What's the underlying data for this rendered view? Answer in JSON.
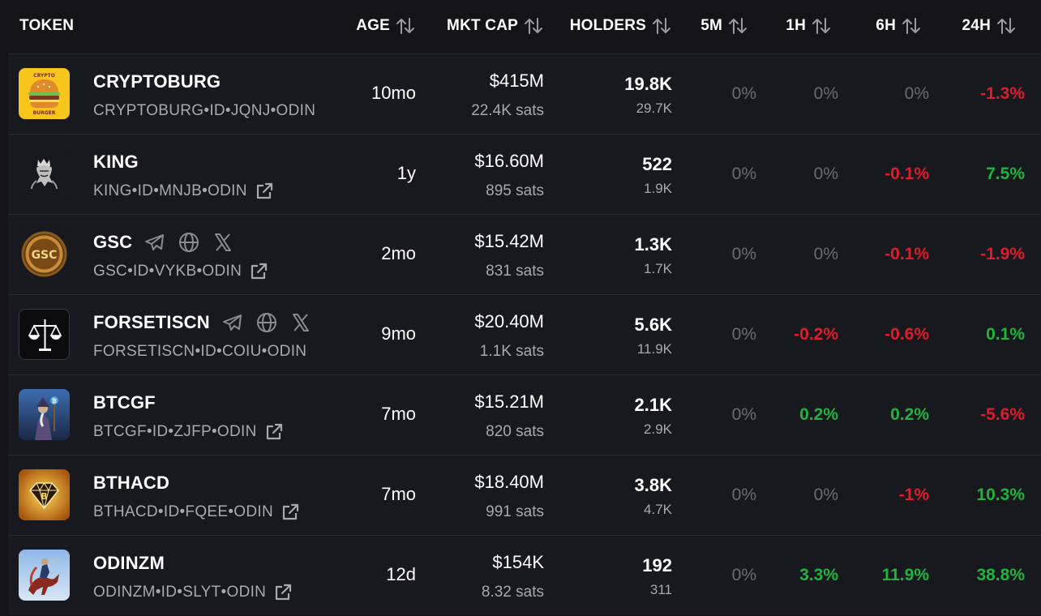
{
  "headers": {
    "token": "TOKEN",
    "age": "AGE",
    "mktcap": "MKT CAP",
    "holders": "HOLDERS",
    "m5": "5M",
    "h1": "1H",
    "h6": "6H",
    "h24": "24H"
  },
  "colors": {
    "background": "#131318",
    "row": "#18181f",
    "positive": "#1fb53b",
    "negative": "#e01b2a",
    "neutral": "#6b6b76",
    "muted": "#a8a8b3"
  },
  "rows": [
    {
      "name": "CRYPTOBURG",
      "id": "CRYPTOBURG•ID•JQNJ•ODIN",
      "logo_icon": "burger-logo-icon",
      "socials": [],
      "age": "10mo",
      "mktcap": "$415M",
      "mktcap_sats": "22.4K sats",
      "holders": "19.8K",
      "holders_sub": "29.7K",
      "m5": "0%",
      "m5_dir": "neutral",
      "h1": "0%",
      "h1_dir": "neutral",
      "h6": "0%",
      "h6_dir": "neutral",
      "h24": "-1.3%",
      "h24_dir": "neg"
    },
    {
      "name": "KING",
      "id": "KING•ID•MNJB•ODIN",
      "logo_icon": "king-logo-icon",
      "socials": [],
      "age": "1y",
      "mktcap": "$16.60M",
      "mktcap_sats": "895 sats",
      "holders": "522",
      "holders_sub": "1.9K",
      "m5": "0%",
      "m5_dir": "neutral",
      "h1": "0%",
      "h1_dir": "neutral",
      "h6": "-0.1%",
      "h6_dir": "neg",
      "h24": "7.5%",
      "h24_dir": "pos"
    },
    {
      "name": "GSC",
      "id": "GSC•ID•VYKB•ODIN",
      "logo_icon": "gsc-coin-logo-icon",
      "socials": [
        "telegram-icon",
        "globe-icon",
        "x-icon"
      ],
      "age": "2mo",
      "mktcap": "$15.42M",
      "mktcap_sats": "831 sats",
      "holders": "1.3K",
      "holders_sub": "1.7K",
      "m5": "0%",
      "m5_dir": "neutral",
      "h1": "0%",
      "h1_dir": "neutral",
      "h6": "-0.1%",
      "h6_dir": "neg",
      "h24": "-1.9%",
      "h24_dir": "neg"
    },
    {
      "name": "FORSETISCN",
      "id": "FORSETISCN•ID•COIU•ODIN",
      "logo_icon": "scales-logo-icon",
      "socials": [
        "telegram-icon",
        "globe-icon",
        "x-icon"
      ],
      "age": "9mo",
      "mktcap": "$20.40M",
      "mktcap_sats": "1.1K sats",
      "holders": "5.6K",
      "holders_sub": "11.9K",
      "m5": "0%",
      "m5_dir": "neutral",
      "h1": "-0.2%",
      "h1_dir": "neg",
      "h6": "-0.6%",
      "h6_dir": "neg",
      "h24": "0.1%",
      "h24_dir": "pos"
    },
    {
      "name": "BTCGF",
      "id": "BTCGF•ID•ZJFP•ODIN",
      "logo_icon": "wizard-logo-icon",
      "socials": [],
      "age": "7mo",
      "mktcap": "$15.21M",
      "mktcap_sats": "820 sats",
      "holders": "2.1K",
      "holders_sub": "2.9K",
      "m5": "0%",
      "m5_dir": "neutral",
      "h1": "0.2%",
      "h1_dir": "pos",
      "h6": "0.2%",
      "h6_dir": "pos",
      "h24": "-5.6%",
      "h24_dir": "neg"
    },
    {
      "name": "BTHACD",
      "id": "BTHACD•ID•FQEE•ODIN",
      "logo_icon": "gold-diamond-logo-icon",
      "socials": [],
      "age": "7mo",
      "mktcap": "$18.40M",
      "mktcap_sats": "991 sats",
      "holders": "3.8K",
      "holders_sub": "4.7K",
      "m5": "0%",
      "m5_dir": "neutral",
      "h1": "0%",
      "h1_dir": "neutral",
      "h6": "-1%",
      "h6_dir": "neg",
      "h24": "10.3%",
      "h24_dir": "pos"
    },
    {
      "name": "ODINZM",
      "id": "ODINZM•ID•SLYT•ODIN",
      "logo_icon": "rider-logo-icon",
      "socials": [],
      "age": "12d",
      "mktcap": "$154K",
      "mktcap_sats": "8.32 sats",
      "holders": "192",
      "holders_sub": "311",
      "m5": "0%",
      "m5_dir": "neutral",
      "h1": "3.3%",
      "h1_dir": "pos",
      "h6": "11.9%",
      "h6_dir": "pos",
      "h24": "38.8%",
      "h24_dir": "pos"
    }
  ]
}
